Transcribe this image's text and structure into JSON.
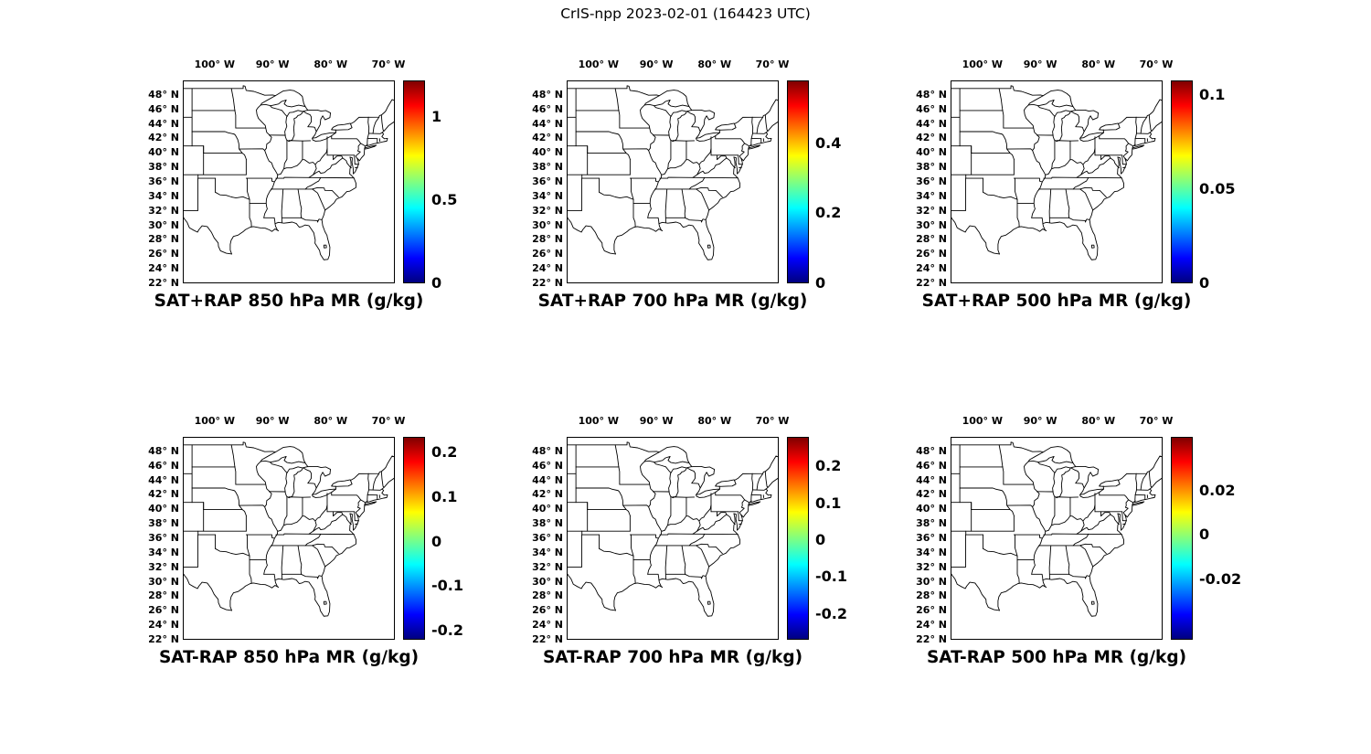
{
  "figure_title": "CrIS-npp 2023-02-01 (164423 UTC)",
  "colors": {
    "background": "#ffffff",
    "text": "#000000",
    "map_line": "#000000",
    "jet_colormap": [
      "#000080",
      "#0000ff",
      "#00ffff",
      "#80ff80",
      "#ffff00",
      "#ff0000",
      "#800000"
    ]
  },
  "axis": {
    "lon_ticks": [
      "100° W",
      "90° W",
      "80° W",
      "70° W"
    ],
    "lat_ticks": [
      "48° N",
      "46° N",
      "44° N",
      "42° N",
      "40° N",
      "38° N",
      "36° N",
      "34° N",
      "32° N",
      "30° N",
      "28° N",
      "26° N",
      "24° N",
      "22° N"
    ]
  },
  "panels": [
    {
      "title": "SAT+RAP 850 hPa MR (g/kg)",
      "colorbar": {
        "min": 0,
        "max": 1.22,
        "ticks": [
          {
            "value": 1,
            "label": "1"
          },
          {
            "value": 0.5,
            "label": "0.5"
          },
          {
            "value": 0,
            "label": "0"
          }
        ]
      }
    },
    {
      "title": "SAT+RAP 700 hPa MR (g/kg)",
      "colorbar": {
        "min": 0,
        "max": 0.58,
        "ticks": [
          {
            "value": 0.4,
            "label": "0.4"
          },
          {
            "value": 0.2,
            "label": "0.2"
          },
          {
            "value": 0,
            "label": "0"
          }
        ]
      }
    },
    {
      "title": "SAT+RAP 500 hPa MR (g/kg)",
      "colorbar": {
        "min": 0,
        "max": 0.108,
        "ticks": [
          {
            "value": 0.1,
            "label": "0.1"
          },
          {
            "value": 0.05,
            "label": "0.05"
          },
          {
            "value": 0,
            "label": "0"
          }
        ]
      }
    },
    {
      "title": "SAT-RAP 850 hPa MR (g/kg)",
      "colorbar": {
        "min": -0.22,
        "max": 0.235,
        "ticks": [
          {
            "value": 0.2,
            "label": "0.2"
          },
          {
            "value": 0.1,
            "label": "0.1"
          },
          {
            "value": 0,
            "label": "0"
          },
          {
            "value": -0.1,
            "label": "-0.1"
          },
          {
            "value": -0.2,
            "label": "-0.2"
          }
        ]
      }
    },
    {
      "title": "SAT-RAP 700 hPa MR (g/kg)",
      "colorbar": {
        "min": -0.27,
        "max": 0.28,
        "ticks": [
          {
            "value": 0.2,
            "label": "0.2"
          },
          {
            "value": 0.1,
            "label": "0.1"
          },
          {
            "value": 0,
            "label": "0"
          },
          {
            "value": -0.1,
            "label": "-0.1"
          },
          {
            "value": -0.2,
            "label": "-0.2"
          }
        ]
      }
    },
    {
      "title": "SAT-RAP 500 hPa MR (g/kg)",
      "colorbar": {
        "min": -0.047,
        "max": 0.044,
        "ticks": [
          {
            "value": 0.02,
            "label": "0.02"
          },
          {
            "value": 0,
            "label": "0"
          },
          {
            "value": -0.02,
            "label": "-0.02"
          }
        ]
      }
    }
  ],
  "chart_data": {
    "type": "heatmap",
    "title": "CrIS-npp 2023-02-01 (164423 UTC)",
    "layout": "2x3 grid of geographic map panels of the central/eastern United States with state outlines, each panel with a vertical jet colorbar on the right; legend/colorbar position: right of each map",
    "colormap": "jet",
    "x_axis": {
      "label": "longitude",
      "tick_labels": [
        "100° W",
        "90° W",
        "80° W",
        "70° W"
      ],
      "range_deg_west": [
        105.5,
        68.9
      ]
    },
    "y_axis": {
      "label": "latitude",
      "tick_labels": [
        "48° N",
        "46° N",
        "44° N",
        "42° N",
        "40° N",
        "38° N",
        "36° N",
        "34° N",
        "32° N",
        "30° N",
        "28° N",
        "26° N",
        "24° N",
        "22° N"
      ],
      "range_deg_north": [
        22,
        50
      ]
    },
    "panels": [
      {
        "title": "SAT+RAP 850 hPa MR (g/kg)",
        "colorbar_tick_values": [
          1,
          0.5,
          0
        ],
        "colorbar_range": [
          0,
          1.22
        ]
      },
      {
        "title": "SAT+RAP 700 hPa MR (g/kg)",
        "colorbar_tick_values": [
          0.4,
          0.2,
          0
        ],
        "colorbar_range": [
          0,
          0.58
        ]
      },
      {
        "title": "SAT+RAP 500 hPa MR (g/kg)",
        "colorbar_tick_values": [
          0.1,
          0.05,
          0
        ],
        "colorbar_range": [
          0,
          0.108
        ]
      },
      {
        "title": "SAT-RAP 850 hPa MR (g/kg)",
        "colorbar_tick_values": [
          0.2,
          0.1,
          0,
          -0.1,
          -0.2
        ],
        "colorbar_range": [
          -0.22,
          0.235
        ]
      },
      {
        "title": "SAT-RAP 700 hPa MR (g/kg)",
        "colorbar_tick_values": [
          0.2,
          0.1,
          0,
          -0.1,
          -0.2
        ],
        "colorbar_range": [
          -0.27,
          0.28
        ]
      },
      {
        "title": "SAT-RAP 500 hPa MR (g/kg)",
        "colorbar_tick_values": [
          0.02,
          0,
          -0.02
        ],
        "colorbar_range": [
          -0.047,
          0.044
        ]
      }
    ],
    "notes": "Map interiors are white (state boundary outlines only); no filled data values are visible in the panels."
  }
}
